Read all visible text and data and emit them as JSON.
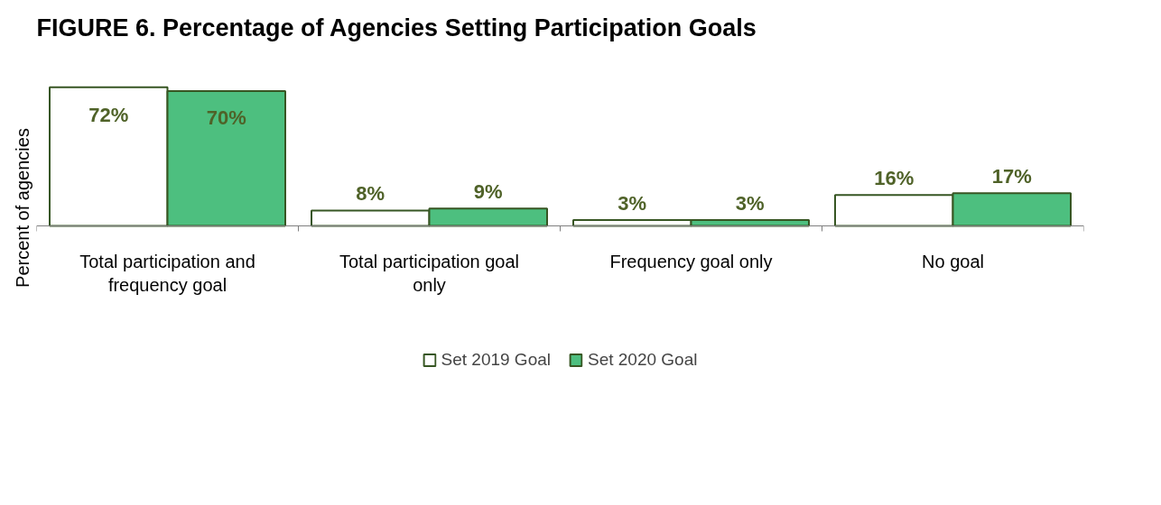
{
  "chart_data": {
    "type": "bar",
    "title": "FIGURE 6. Percentage of Agencies Setting Participation Goals",
    "ylabel": "Percent of agencies",
    "categories": [
      "Total participation and frequency goal",
      "Total participation goal only",
      "Frequency goal only",
      "No goal"
    ],
    "series": [
      {
        "name": "Set 2019 Goal",
        "color": "#ffffff",
        "values": [
          72,
          8,
          3,
          16
        ],
        "value_labels": [
          "72%",
          "8%",
          "3%",
          "16%"
        ]
      },
      {
        "name": "Set 2020 Goal",
        "color": "#4dbf7f",
        "values": [
          70,
          9,
          3,
          17
        ],
        "value_labels": [
          "70%",
          "9%",
          "3%",
          "17%"
        ]
      }
    ],
    "legend": "bottom"
  }
}
